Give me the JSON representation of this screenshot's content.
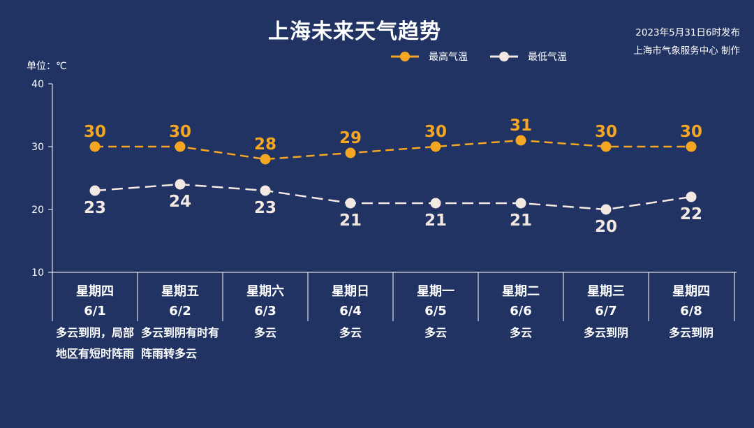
{
  "title": "上海未来天气趋势",
  "issue_line1": "2023年5月31日6时发布",
  "issue_line2": "上海市气象服务中心 制作",
  "unit": "单位：℃",
  "colors": {
    "background": "#213362",
    "high": "#F5A623",
    "low": "#F4E9E2",
    "axis": "#FFFFFF"
  },
  "chart_data": {
    "type": "line",
    "title": "上海未来天气趋势",
    "ylabel": "单位：℃",
    "ylim": [
      10,
      40
    ],
    "yticks": [
      10,
      20,
      30,
      40
    ],
    "grid": false,
    "legend": "top-right",
    "categories": [
      {
        "weekday": "星期四",
        "date": "6/1",
        "weather": "多云到阴，局部地区有短时阵雨"
      },
      {
        "weekday": "星期五",
        "date": "6/2",
        "weather": "多云到阴有时有阵雨转多云"
      },
      {
        "weekday": "星期六",
        "date": "6/3",
        "weather": "多云"
      },
      {
        "weekday": "星期日",
        "date": "6/4",
        "weather": "多云"
      },
      {
        "weekday": "星期一",
        "date": "6/5",
        "weather": "多云"
      },
      {
        "weekday": "星期二",
        "date": "6/6",
        "weather": "多云"
      },
      {
        "weekday": "星期三",
        "date": "6/7",
        "weather": "多云到阴"
      },
      {
        "weekday": "星期四",
        "date": "6/8",
        "weather": "多云到阴"
      }
    ],
    "series": [
      {
        "name": "最高气温",
        "color": "#F5A623",
        "values": [
          30,
          30,
          28,
          29,
          30,
          31,
          30,
          30
        ]
      },
      {
        "name": "最低气温",
        "color": "#F4E9E2",
        "values": [
          23,
          24,
          23,
          21,
          21,
          21,
          20,
          22
        ]
      }
    ]
  }
}
